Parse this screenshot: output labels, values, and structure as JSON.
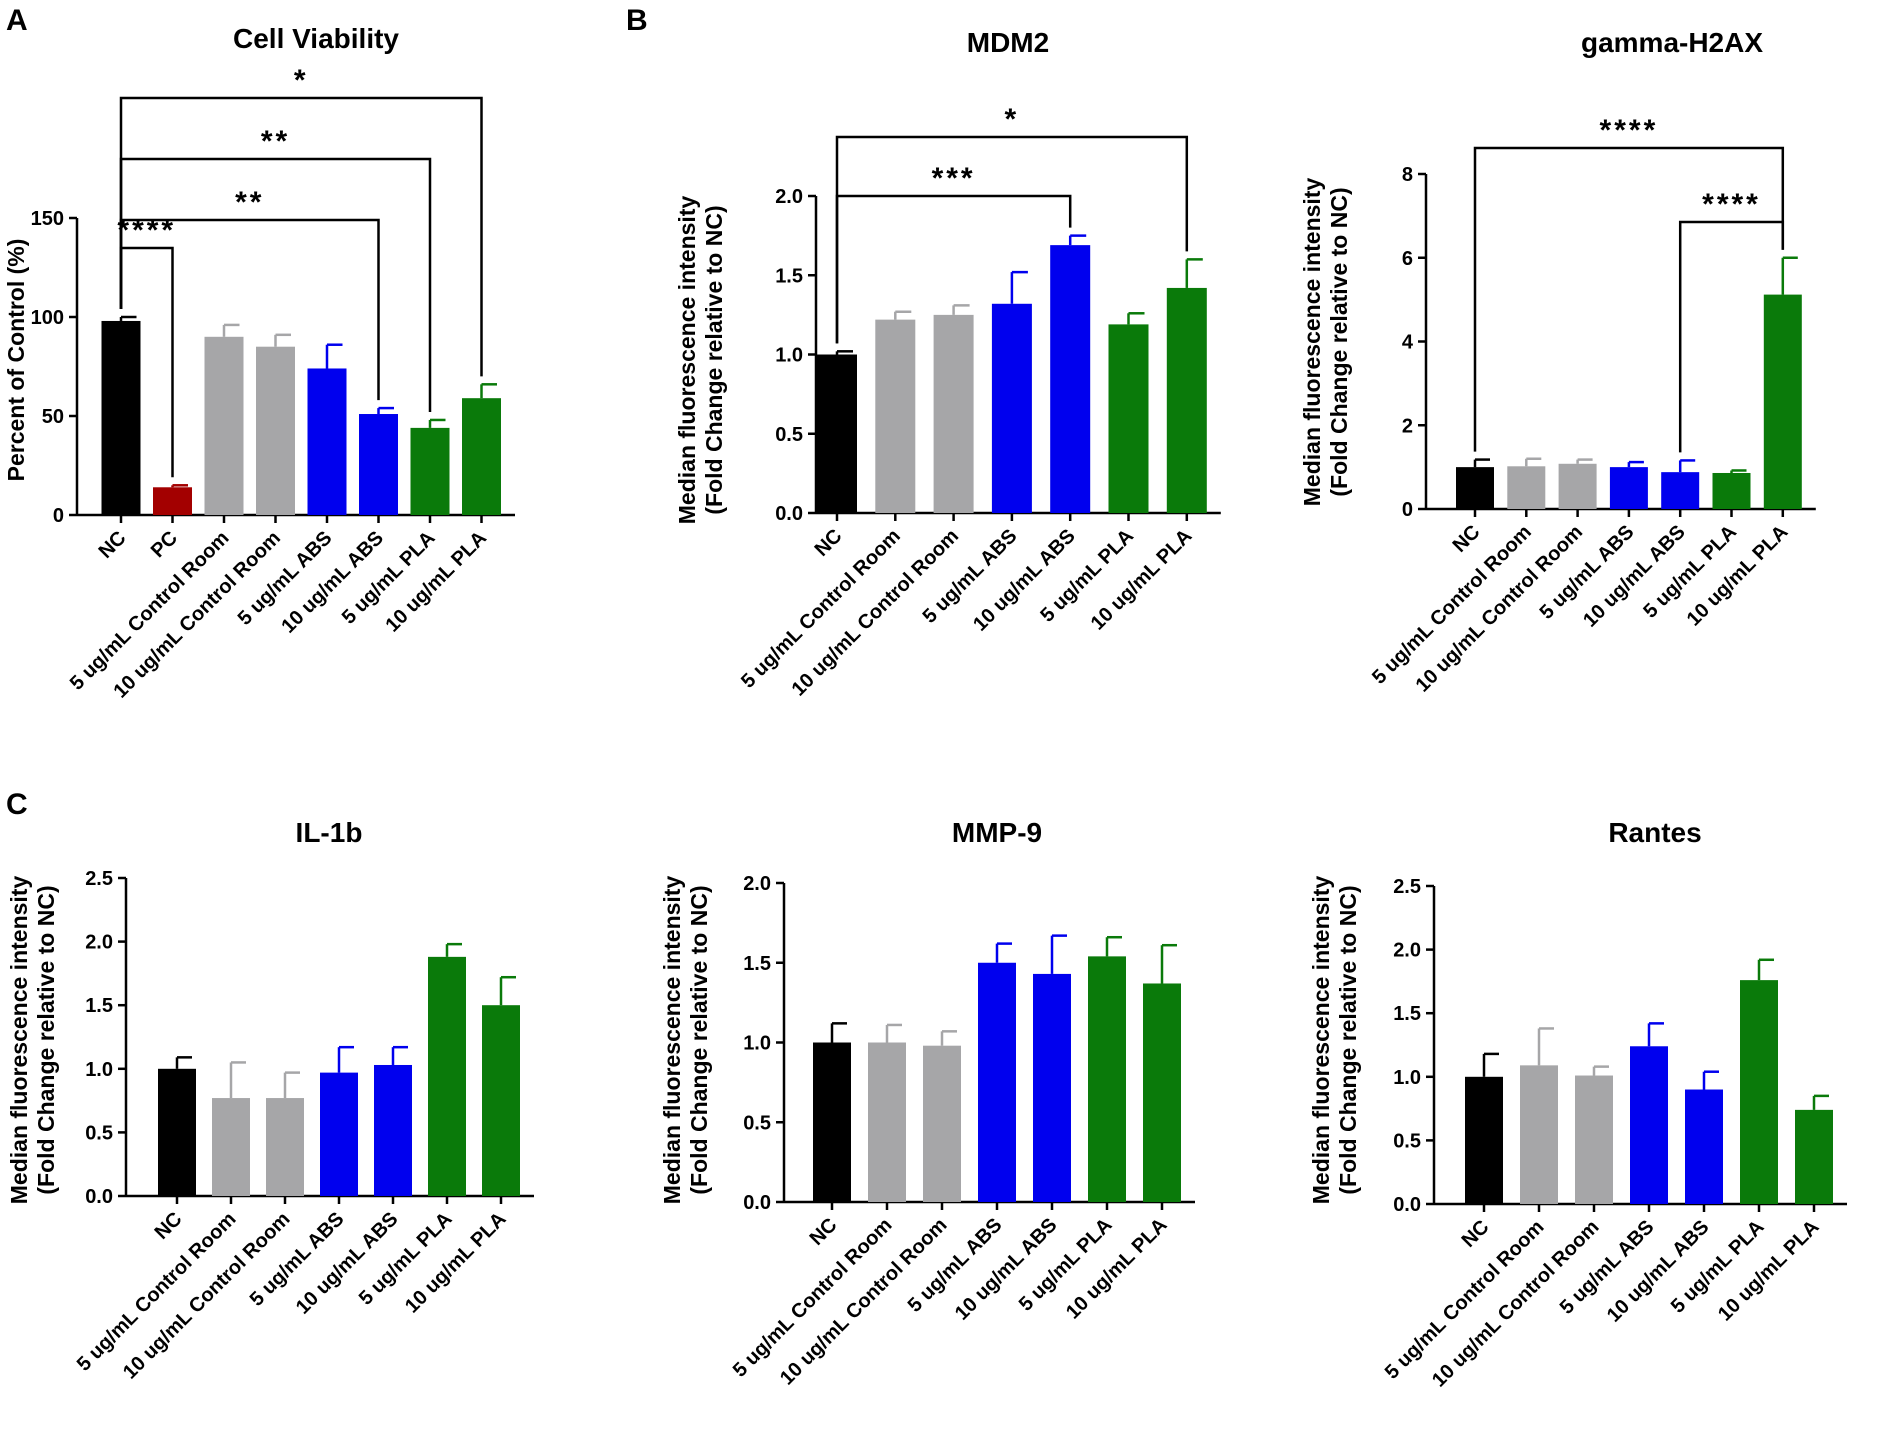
{
  "panel_labels": [
    "A",
    "B",
    "C"
  ],
  "colors": {
    "black": "#000000",
    "dark_red": "#a30000",
    "gray": "#a6a6a8",
    "blue": "#0000ee",
    "green": "#0a7a0a"
  },
  "chart_data": [
    {
      "id": "cell-viability",
      "type": "bar",
      "title": "Cell Viability",
      "xlabel": "",
      "ylabel": "Percent of Control (%)",
      "ylim": [
        0,
        150
      ],
      "yticks": [
        "0",
        "50",
        "100",
        "150"
      ],
      "categories": [
        "NC",
        "PC",
        "5 ug/mL Control Room",
        "10 ug/mL Control Room",
        "5 ug/mL ABS",
        "10 ug/mL ABS",
        "5 ug/mL PLA",
        "10 ug/mL PLA"
      ],
      "values": [
        98,
        14,
        90,
        85,
        74,
        51,
        44,
        59
      ],
      "errors": [
        2,
        1,
        6,
        6,
        12,
        3,
        4,
        7
      ],
      "bar_colors": [
        "black",
        "dark_red",
        "gray",
        "gray",
        "blue",
        "blue",
        "green",
        "green"
      ],
      "significance": [
        {
          "from": 0,
          "to": 1,
          "label": "****"
        },
        {
          "from": 0,
          "to": 5,
          "label": "**"
        },
        {
          "from": 0,
          "to": 6,
          "label": "**"
        },
        {
          "from": 0,
          "to": 7,
          "label": "*"
        }
      ]
    },
    {
      "id": "mdm2",
      "type": "bar",
      "title": "MDM2",
      "xlabel": "",
      "ylabel": [
        "Median fluorescence intensity",
        "(Fold Change relative to NC)"
      ],
      "ylim": [
        0,
        2.0
      ],
      "yticks": [
        "0.0",
        "0.5",
        "1.0",
        "1.5",
        "2.0"
      ],
      "categories": [
        "NC",
        "5 ug/mL Control Room",
        "10 ug/mL Control Room",
        "5 ug/mL ABS",
        "10 ug/mL ABS",
        "5 ug/mL PLA",
        "10 ug/mL PLA"
      ],
      "values": [
        1.0,
        1.22,
        1.25,
        1.32,
        1.69,
        1.19,
        1.42
      ],
      "errors": [
        0.02,
        0.05,
        0.06,
        0.2,
        0.06,
        0.07,
        0.18
      ],
      "bar_colors": [
        "black",
        "gray",
        "gray",
        "blue",
        "blue",
        "green",
        "green"
      ],
      "significance": [
        {
          "from": 0,
          "to": 4,
          "label": "***"
        },
        {
          "from": 0,
          "to": 6,
          "label": "*"
        }
      ]
    },
    {
      "id": "gamma-h2ax",
      "type": "bar",
      "title": "gamma-H2AX",
      "xlabel": "",
      "ylabel": [
        "Median fluorescence intensity",
        "(Fold Change relative to NC)"
      ],
      "ylim": [
        0,
        8
      ],
      "yticks": [
        "0",
        "2",
        "4",
        "6",
        "8"
      ],
      "categories": [
        "NC",
        "5 ug/mL Control Room",
        "10 ug/mL Control Room",
        "5 ug/mL ABS",
        "10 ug/mL ABS",
        "5 ug/mL PLA",
        "10 ug/mL PLA"
      ],
      "values": [
        1.0,
        1.02,
        1.08,
        1.0,
        0.88,
        0.86,
        5.12
      ],
      "errors": [
        0.18,
        0.18,
        0.1,
        0.12,
        0.28,
        0.06,
        0.88
      ],
      "bar_colors": [
        "black",
        "gray",
        "gray",
        "blue",
        "blue",
        "green",
        "green"
      ],
      "significance": [
        {
          "from": 4,
          "to": 6,
          "label": "****"
        },
        {
          "from": 0,
          "to": 6,
          "label": "****"
        }
      ]
    },
    {
      "id": "il-1b",
      "type": "bar",
      "title": "IL-1b",
      "xlabel": "",
      "ylabel": [
        "Median fluorescence intensity",
        "(Fold Change relative to NC)"
      ],
      "ylim": [
        0,
        2.5
      ],
      "yticks": [
        "0.0",
        "0.5",
        "1.0",
        "1.5",
        "2.0",
        "2.5"
      ],
      "categories": [
        "NC",
        "5 ug/mL Control Room",
        "10 ug/mL Control Room",
        "5 ug/mL ABS",
        "10 ug/mL ABS",
        "5 ug/mL PLA",
        "10 ug/mL PLA"
      ],
      "values": [
        1.0,
        0.77,
        0.77,
        0.97,
        1.03,
        1.88,
        1.5
      ],
      "errors": [
        0.09,
        0.28,
        0.2,
        0.2,
        0.14,
        0.1,
        0.22
      ],
      "bar_colors": [
        "black",
        "gray",
        "gray",
        "blue",
        "blue",
        "green",
        "green"
      ],
      "significance": []
    },
    {
      "id": "mmp-9",
      "type": "bar",
      "title": "MMP-9",
      "xlabel": "",
      "ylabel": [
        "Median fluorescence intensity",
        "(Fold Change relative to NC)"
      ],
      "ylim": [
        0,
        2.0
      ],
      "yticks": [
        "0.0",
        "0.5",
        "1.0",
        "1.5",
        "2.0"
      ],
      "categories": [
        "NC",
        "5 ug/mL Control Room",
        "10 ug/mL Control Room",
        "5 ug/mL ABS",
        "10 ug/mL ABS",
        "5 ug/mL PLA",
        "10 ug/mL PLA"
      ],
      "values": [
        1.0,
        1.0,
        0.98,
        1.5,
        1.43,
        1.54,
        1.37
      ],
      "errors": [
        0.12,
        0.11,
        0.09,
        0.12,
        0.24,
        0.12,
        0.24
      ],
      "bar_colors": [
        "black",
        "gray",
        "gray",
        "blue",
        "blue",
        "green",
        "green"
      ],
      "significance": []
    },
    {
      "id": "rantes",
      "type": "bar",
      "title": "Rantes",
      "xlabel": "",
      "ylabel": [
        "Median fluorescence intensity",
        "(Fold Change relative to NC)"
      ],
      "ylim": [
        0,
        2.5
      ],
      "yticks": [
        "0.0",
        "0.5",
        "1.0",
        "1.5",
        "2.0",
        "2.5"
      ],
      "categories": [
        "NC",
        "5 ug/mL Control Room",
        "10 ug/mL Control Room",
        "5 ug/mL ABS",
        "10 ug/mL ABS",
        "5 ug/mL PLA",
        "10 ug/mL PLA"
      ],
      "values": [
        1.0,
        1.09,
        1.01,
        1.24,
        0.9,
        1.76,
        0.74
      ],
      "errors": [
        0.18,
        0.29,
        0.07,
        0.18,
        0.14,
        0.16,
        0.11
      ],
      "bar_colors": [
        "black",
        "gray",
        "gray",
        "blue",
        "blue",
        "green",
        "green"
      ],
      "significance": []
    }
  ]
}
